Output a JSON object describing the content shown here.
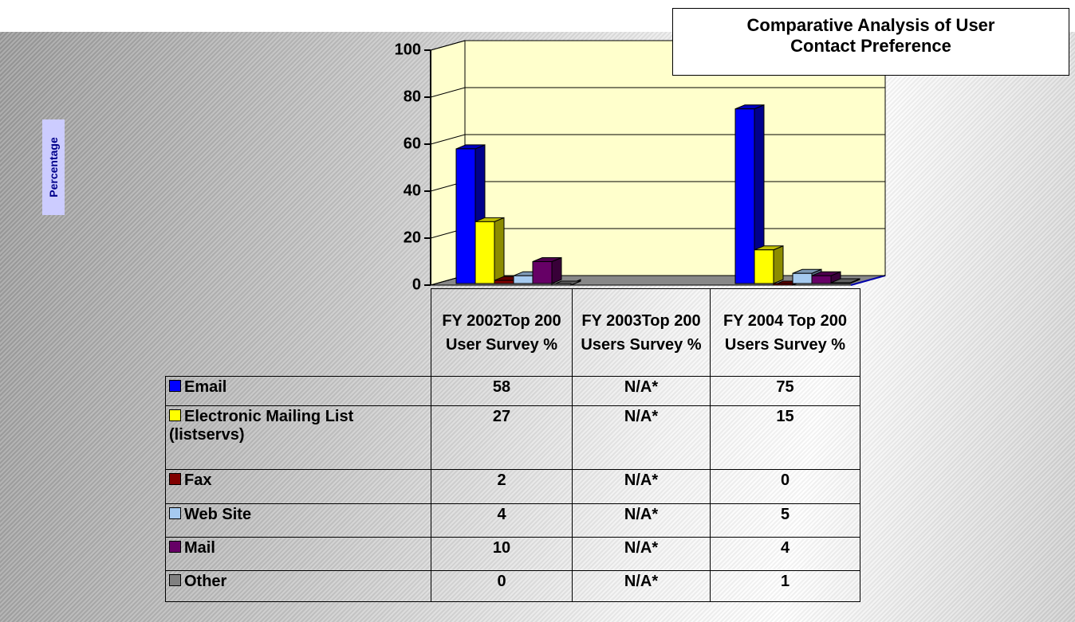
{
  "chart_data": {
    "type": "bar",
    "title": "Comparative Analysis of User Contact Preference",
    "y_label": "Percentage",
    "categories": [
      "FY 2002Top 200 User Survey %",
      "FY 2003Top 200 Users Survey %",
      "FY 2004 Top 200 Users Survey %"
    ],
    "series": [
      {
        "name": "Email",
        "color": "#0000ff",
        "values": [
          58,
          null,
          75
        ],
        "value_labels": [
          "58",
          "N/A*",
          "75"
        ]
      },
      {
        "name": "Electronic Mailing List (listservs)",
        "color": "#ffff00",
        "values": [
          27,
          null,
          15
        ],
        "value_labels": [
          "27",
          "N/A*",
          "15"
        ]
      },
      {
        "name": "Fax",
        "color": "#800000",
        "values": [
          2,
          null,
          0
        ],
        "value_labels": [
          "2",
          "N/A*",
          "0"
        ]
      },
      {
        "name": "Web Site",
        "color": "#a6caf0",
        "values": [
          4,
          null,
          5
        ],
        "value_labels": [
          "4",
          "N/A*",
          "5"
        ]
      },
      {
        "name": "Mail",
        "color": "#660066",
        "values": [
          10,
          null,
          4
        ],
        "value_labels": [
          "10",
          "N/A*",
          "4"
        ]
      },
      {
        "name": "Other",
        "color": "#808080",
        "values": [
          0,
          null,
          1
        ],
        "value_labels": [
          "0",
          "N/A*",
          "1"
        ]
      }
    ],
    "ylim": [
      0,
      100
    ],
    "yticks": [
      0,
      20,
      40,
      60,
      80,
      100
    ],
    "grid": true
  }
}
